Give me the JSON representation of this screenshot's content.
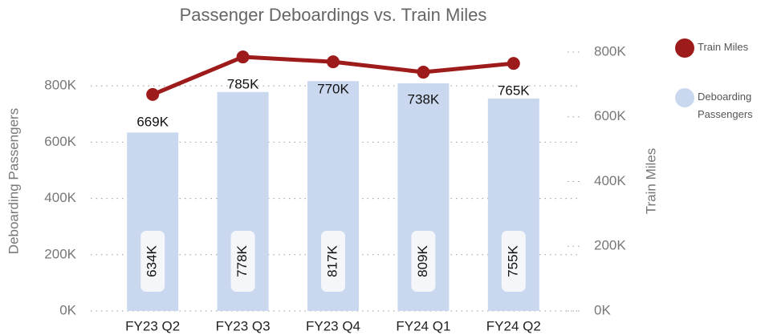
{
  "chart_data": {
    "type": "bar_line",
    "title": "Passenger Deboardings vs. Train Miles",
    "y_label": "Deboarding Passengers",
    "y2_label": "Train Miles",
    "categories": [
      "FY23 Q2",
      "FY23 Q3",
      "FY23 Q4",
      "FY24 Q1",
      "FY24 Q2"
    ],
    "series": [
      {
        "name": "Deboarding Passengers",
        "type": "bar",
        "color": "#c9d8ef",
        "axis": "y",
        "values": [
          634000,
          778000,
          817000,
          809000,
          755000
        ],
        "value_labels": [
          "634K",
          "778K",
          "817K",
          "809K",
          "755K"
        ]
      },
      {
        "name": "Train Miles",
        "type": "line",
        "color": "#9e1b1b",
        "axis": "y2",
        "values": [
          669000,
          785000,
          770000,
          738000,
          765000
        ],
        "value_labels": [
          "669K",
          "785K",
          "770K",
          "738K",
          "765K"
        ]
      }
    ],
    "ylim": [
      0,
      920000
    ],
    "yticks": [
      {
        "value": 0,
        "label": "0K"
      },
      {
        "value": 200000,
        "label": "200K"
      },
      {
        "value": 400000,
        "label": "400K"
      },
      {
        "value": 600000,
        "label": "600K"
      },
      {
        "value": 800000,
        "label": "800K"
      }
    ],
    "y2lim": [
      0,
      800000
    ],
    "y2ticks": [
      {
        "value": 0,
        "label": "0K"
      },
      {
        "value": 200000,
        "label": "200K"
      },
      {
        "value": 400000,
        "label": "400K"
      },
      {
        "value": 600000,
        "label": "600K"
      },
      {
        "value": 800000,
        "label": "800K"
      }
    ],
    "grid": true,
    "legend": "right"
  }
}
